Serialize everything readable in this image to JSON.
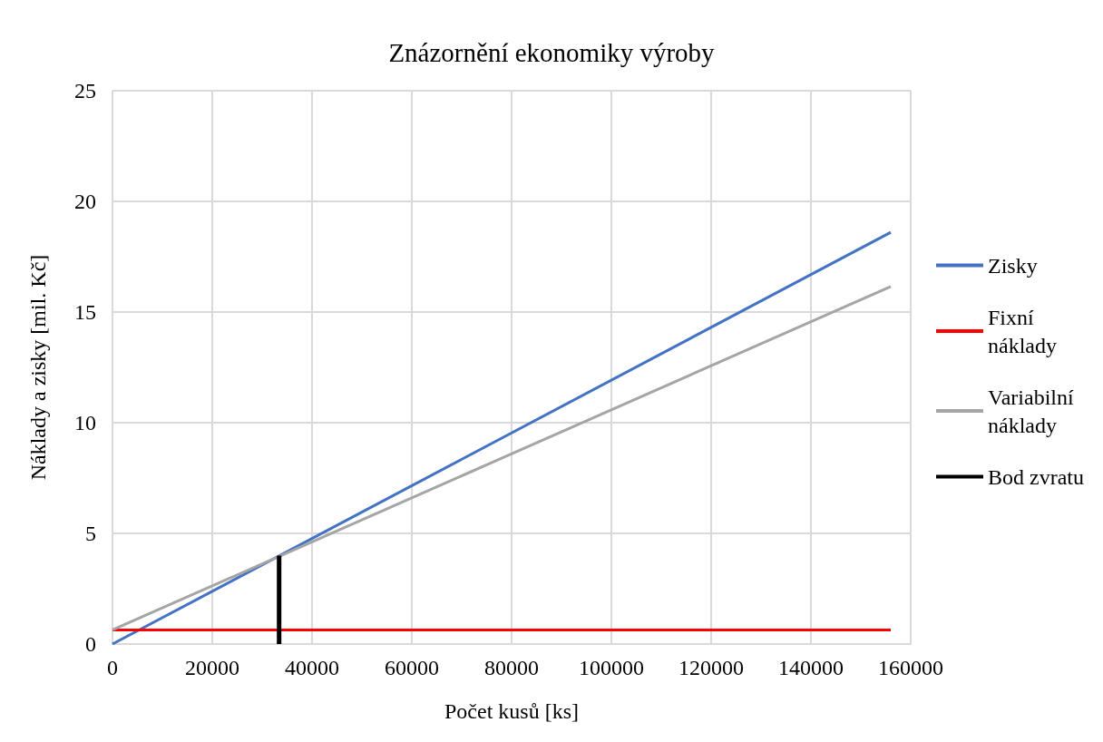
{
  "chart_data": {
    "type": "line",
    "title": "Znázornění ekonomiky výroby",
    "xlabel": "Počet kusů [ks]",
    "ylabel": "Náklady a zisky [mil. Kč]",
    "series": [
      {
        "name": "Zisky",
        "color": "#4472c4",
        "x": [
          0,
          156000
        ],
        "values": [
          0,
          18.6
        ]
      },
      {
        "name": "Fixní náklady",
        "color": "#ff0000",
        "x": [
          0,
          156000
        ],
        "values": [
          0.64,
          0.64
        ]
      },
      {
        "name": "Variabilní náklady",
        "color": "#a5a5a5",
        "x": [
          0,
          156000
        ],
        "values": [
          0.64,
          16.15
        ]
      },
      {
        "name": "Bod zvratu",
        "color": "#000000",
        "x": [
          33400,
          33400
        ],
        "values": [
          0,
          4.0
        ]
      }
    ],
    "xlim": [
      0,
      160000
    ],
    "xticks": [
      0,
      20000,
      40000,
      60000,
      80000,
      100000,
      120000,
      140000,
      160000
    ],
    "ylim": [
      0,
      25
    ],
    "yticks": [
      0,
      5,
      10,
      15,
      20,
      25
    ],
    "grid": true,
    "legend": "right",
    "marker": "none",
    "line_style": "solid"
  }
}
